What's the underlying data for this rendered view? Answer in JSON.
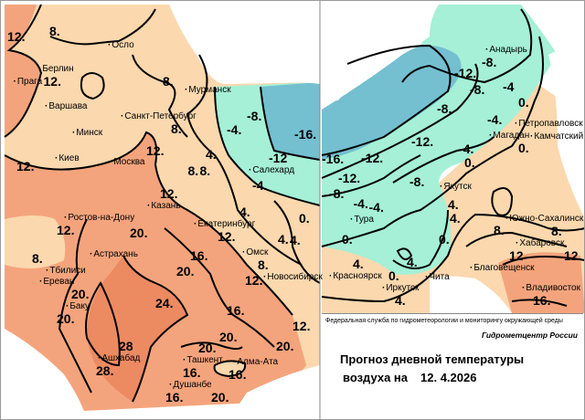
{
  "colors": {
    "band_0_8": "#fbd8ae",
    "band_12_20": "#f4a47c",
    "band_24_plus": "#ec8a62",
    "band_minus_0_12": "#a5f0d6",
    "band_minus_12_plus": "#74bfd0",
    "isoline": "#000000"
  },
  "legend": {
    "agency": "Федеральная служба по гидрометеорологии и мониторингу окружающей среды",
    "center": "Гидрометцентр России",
    "title_line1": "Прогноз дневной температуры",
    "title_line2": "воздуха на",
    "date": "12. 4.2026"
  },
  "cities": [
    "Осло",
    "Берлин",
    "Прага",
    "Варшава",
    "Минск",
    "Санкт-Петербург",
    "Мурманск",
    "Киев",
    "Москва",
    "Казань",
    "Салехард",
    "Ростов-на-Дону",
    "Екатеринбург",
    "Астрахань",
    "Тбилиси",
    "Ереван",
    "Омск",
    "Новосибирск",
    "Баку",
    "Ашхабад",
    "Ташкент",
    "Алма-Ата",
    "Душанбе",
    "Анадырь",
    "Петропавловск",
    "Камчатский",
    "Магадан",
    "Якутск",
    "Тура",
    "Южно-Сахалинск",
    "Хабаровск",
    "Благовещенск",
    "Красноярск",
    "Чита",
    "Иркутск",
    "Владивосток"
  ],
  "isotherm_labels": [
    "12.",
    "8.",
    "12.",
    "8.",
    "8.",
    "12.",
    "12.",
    "12.",
    "8.",
    "4.",
    "8.",
    "-4.",
    "-8.",
    "-16.",
    "-12",
    "-4.",
    "4.",
    "4.",
    "0.",
    "12.",
    "12.",
    "20.",
    "16.",
    "20.",
    "8.",
    "4.",
    "8.",
    "12.",
    "20.",
    "20.",
    "24.",
    "16.",
    "28",
    "28.",
    "20.",
    "12.",
    "20.",
    "16.",
    "16.",
    "16.",
    "20.",
    "20.",
    "-12.",
    "-8.",
    "-8.",
    "-8.",
    "-4",
    "0.",
    "-4.",
    "0.",
    "-4.",
    "0.",
    "-12.",
    "-12.",
    "-16.",
    "-8.",
    "-12.",
    "-8.",
    "-4.",
    "-4.",
    "4.",
    "0.",
    "0.",
    "4.",
    "8.",
    "8.",
    "12",
    "12.",
    "4.",
    "0.",
    "4.",
    "4.",
    "16."
  ]
}
